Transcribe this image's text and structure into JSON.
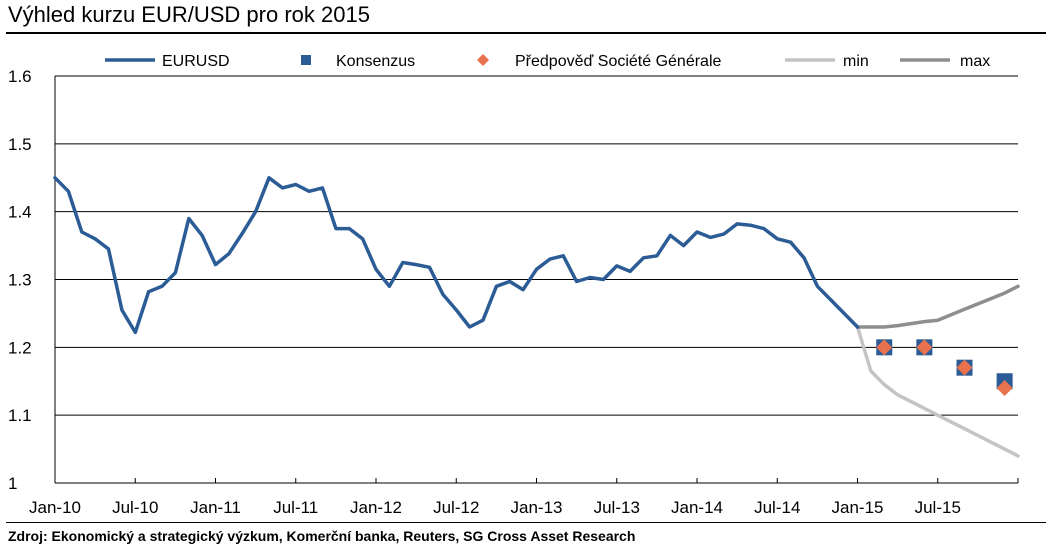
{
  "header": {
    "title": "Výhled kurzu EUR/USD pro rok 2015"
  },
  "footer": {
    "source": "Zdroj: Ekonomický a strategický výzkum, Komerční banka, Reuters, SG Cross Asset Research"
  },
  "colors": {
    "eurusd": "#2C5C95",
    "konsenzus": "#2C5C95",
    "predpoved": "#E8714E",
    "min": "#C4C4C4",
    "max": "#8E8E8E"
  },
  "chart_data": {
    "type": "line",
    "title": "Výhled kurzu EUR/USD pro rok 2015",
    "ylim": [
      1,
      1.6
    ],
    "yticks": [
      "1.6",
      "1.5",
      "1.4",
      "1.3",
      "1.2",
      "1.1",
      "1"
    ],
    "xticks": [
      "Jan-10",
      "Jul-10",
      "Jan-11",
      "Jul-11",
      "Jan-12",
      "Jul-12",
      "Jan-13",
      "Jul-13",
      "Jan-14",
      "Jul-14",
      "Jan-15",
      "Jul-15"
    ],
    "xrange": [
      "Jan-10",
      "Jan-16"
    ],
    "grid": "horizontal",
    "legend_position": "top",
    "series": [
      {
        "name": "EURUSD",
        "style": "line",
        "points": [
          [
            "Jan-10",
            1.45
          ],
          [
            "Feb-10",
            1.43
          ],
          [
            "Mar-10",
            1.37
          ],
          [
            "Apr-10",
            1.36
          ],
          [
            "May-10",
            1.345
          ],
          [
            "Jun-10",
            1.255
          ],
          [
            "Jul-10",
            1.222
          ],
          [
            "Aug-10",
            1.282
          ],
          [
            "Sep-10",
            1.29
          ],
          [
            "Oct-10",
            1.31
          ],
          [
            "Nov-10",
            1.39
          ],
          [
            "Dec-10",
            1.365
          ],
          [
            "Jan-11",
            1.322
          ],
          [
            "Feb-11",
            1.338
          ],
          [
            "Mar-11",
            1.368
          ],
          [
            "Apr-11",
            1.4
          ],
          [
            "May-11",
            1.45
          ],
          [
            "Jun-11",
            1.435
          ],
          [
            "Jul-11",
            1.44
          ],
          [
            "Aug-11",
            1.43
          ],
          [
            "Sep-11",
            1.435
          ],
          [
            "Oct-11",
            1.375
          ],
          [
            "Nov-11",
            1.375
          ],
          [
            "Dec-11",
            1.36
          ],
          [
            "Jan-12",
            1.315
          ],
          [
            "Feb-12",
            1.29
          ],
          [
            "Mar-12",
            1.325
          ],
          [
            "Apr-12",
            1.322
          ],
          [
            "May-12",
            1.318
          ],
          [
            "Jun-12",
            1.278
          ],
          [
            "Jul-12",
            1.255
          ],
          [
            "Aug-12",
            1.23
          ],
          [
            "Sep-12",
            1.24
          ],
          [
            "Oct-12",
            1.29
          ],
          [
            "Nov-12",
            1.297
          ],
          [
            "Dec-12",
            1.285
          ],
          [
            "Jan-13",
            1.315
          ],
          [
            "Feb-13",
            1.33
          ],
          [
            "Mar-13",
            1.335
          ],
          [
            "Apr-13",
            1.297
          ],
          [
            "May-13",
            1.303
          ],
          [
            "Jun-13",
            1.3
          ],
          [
            "Jul-13",
            1.32
          ],
          [
            "Aug-13",
            1.312
          ],
          [
            "Sep-13",
            1.332
          ],
          [
            "Oct-13",
            1.335
          ],
          [
            "Nov-13",
            1.365
          ],
          [
            "Dec-13",
            1.35
          ],
          [
            "Jan-14",
            1.37
          ],
          [
            "Feb-14",
            1.362
          ],
          [
            "Mar-14",
            1.367
          ],
          [
            "Apr-14",
            1.382
          ],
          [
            "May-14",
            1.38
          ],
          [
            "Jun-14",
            1.375
          ],
          [
            "Jul-14",
            1.36
          ],
          [
            "Aug-14",
            1.355
          ],
          [
            "Sep-14",
            1.332
          ],
          [
            "Oct-14",
            1.29
          ],
          [
            "Nov-14",
            1.27
          ],
          [
            "Dec-14",
            1.25
          ],
          [
            "Jan-15",
            1.23
          ]
        ]
      },
      {
        "name": "Konsenzus",
        "style": "square",
        "points": [
          [
            "Mar-15",
            1.2
          ],
          [
            "Jun-15",
            1.2
          ],
          [
            "Sep-15",
            1.17
          ],
          [
            "Dec-15",
            1.15
          ]
        ]
      },
      {
        "name": "Předpověď Société Générale",
        "style": "diamond",
        "points": [
          [
            "Mar-15",
            1.2
          ],
          [
            "Jun-15",
            1.2
          ],
          [
            "Sep-15",
            1.17
          ],
          [
            "Dec-15",
            1.14
          ]
        ]
      },
      {
        "name": "min",
        "style": "line",
        "points": [
          [
            "Jan-15",
            1.23
          ],
          [
            "Feb-15",
            1.165
          ],
          [
            "Mar-15",
            1.145
          ],
          [
            "Apr-15",
            1.13
          ],
          [
            "May-15",
            1.12
          ],
          [
            "Jun-15",
            1.11
          ],
          [
            "Jul-15",
            1.1
          ],
          [
            "Aug-15",
            1.09
          ],
          [
            "Sep-15",
            1.08
          ],
          [
            "Oct-15",
            1.07
          ],
          [
            "Nov-15",
            1.06
          ],
          [
            "Dec-15",
            1.05
          ],
          [
            "Jan-16",
            1.04
          ]
        ]
      },
      {
        "name": "max",
        "style": "line",
        "points": [
          [
            "Jan-15",
            1.23
          ],
          [
            "Feb-15",
            1.23
          ],
          [
            "Mar-15",
            1.23
          ],
          [
            "Apr-15",
            1.232
          ],
          [
            "May-15",
            1.235
          ],
          [
            "Jun-15",
            1.238
          ],
          [
            "Jul-15",
            1.24
          ],
          [
            "Aug-15",
            1.248
          ],
          [
            "Sep-15",
            1.256
          ],
          [
            "Oct-15",
            1.264
          ],
          [
            "Nov-15",
            1.272
          ],
          [
            "Dec-15",
            1.28
          ],
          [
            "Jan-16",
            1.29
          ]
        ]
      }
    ]
  }
}
